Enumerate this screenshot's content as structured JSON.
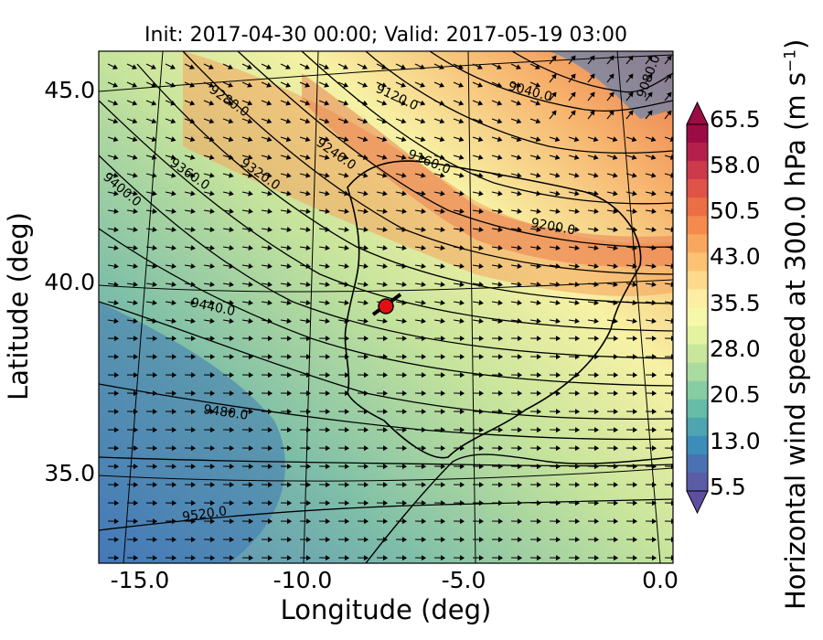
{
  "title": "Init: 2017-04-30 00:00; Valid: 2017-05-19 03:00",
  "xlabel": "Longitude (deg)",
  "ylabel": "Latitude (deg)",
  "colorbar": {
    "label_main": "Horizontal wind speed at 300.0 hPa (m s",
    "label_exp": "−1",
    "label_end": ")",
    "ticks": [
      "65.5",
      "58.0",
      "50.5",
      "43.0",
      "35.5",
      "28.0",
      "20.5",
      "13.0",
      "5.5"
    ],
    "range": [
      5.5,
      65.5
    ]
  },
  "x_ticks": [
    "-15.0",
    "-10.0",
    "-5.0",
    "0.0"
  ],
  "y_ticks": [
    "45.0",
    "40.0",
    "35.0"
  ],
  "contour_labels": [
    "9040.0",
    "9080.0",
    "9120.0",
    "9160.0",
    "9200.0",
    "9240.0",
    "9280.0",
    "9320.0",
    "9360.0",
    "9400.0",
    "9440.0",
    "9480.0",
    "9520.0"
  ],
  "colors": {
    "low": "#4a6fb8",
    "mid": "#f8f2a6",
    "high": "#e8623c",
    "top": "#9c0b44",
    "marker": "#e01010"
  }
}
